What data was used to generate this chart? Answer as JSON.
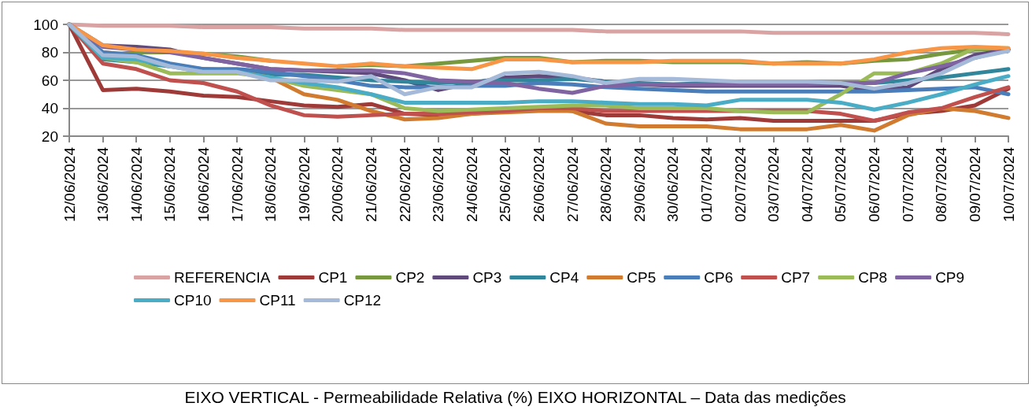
{
  "chart_data": {
    "type": "line",
    "categories": [
      "12/06/2024",
      "13/06/2024",
      "14/06/2024",
      "15/06/2024",
      "16/06/2024",
      "17/06/2024",
      "18/06/2024",
      "19/06/2024",
      "20/06/2024",
      "21/06/2024",
      "22/06/2024",
      "23/06/2024",
      "24/06/2024",
      "25/06/2024",
      "26/06/2024",
      "27/06/2024",
      "28/06/2024",
      "29/06/2024",
      "30/06/2024",
      "01/07/2024",
      "02/07/2024",
      "03/07/2024",
      "04/07/2024",
      "05/07/2024",
      "06/07/2024",
      "07/07/2024",
      "08/07/2024",
      "09/07/2024",
      "10/07/2024"
    ],
    "series": [
      {
        "name": "REFERENCIA",
        "color": "#d9a3a3",
        "values": [
          100,
          99,
          99,
          99,
          98,
          98,
          98,
          97,
          97,
          97,
          96,
          96,
          96,
          96,
          96,
          96,
          95,
          95,
          95,
          95,
          95,
          94,
          94,
          94,
          94,
          94,
          94,
          94,
          93
        ]
      },
      {
        "name": "CP1",
        "color": "#9e3a38",
        "values": [
          100,
          53,
          54,
          52,
          49,
          48,
          45,
          42,
          41,
          43,
          36,
          35,
          36,
          38,
          40,
          38,
          35,
          35,
          33,
          32,
          33,
          31,
          31,
          31,
          31,
          36,
          38,
          42,
          54
        ]
      },
      {
        "name": "CP2",
        "color": "#77983f",
        "values": [
          100,
          78,
          80,
          80,
          79,
          77,
          74,
          null,
          70,
          71,
          70,
          72,
          74,
          76,
          76,
          73,
          74,
          74,
          73,
          73,
          73,
          72,
          73,
          72,
          74,
          75,
          79,
          82,
          82
        ]
      },
      {
        "name": "CP3",
        "color": "#604a7b",
        "values": [
          100,
          85,
          84,
          82,
          76,
          72,
          68,
          67,
          66,
          65,
          60,
          53,
          58,
          62,
          63,
          62,
          59,
          57,
          56,
          56,
          56,
          56,
          56,
          56,
          53,
          55,
          68,
          78,
          82
        ]
      },
      {
        "name": "CP4",
        "color": "#31869b",
        "values": [
          100,
          75,
          73,
          70,
          68,
          67,
          64,
          64,
          62,
          60,
          59,
          58,
          59,
          60,
          60,
          61,
          59,
          58,
          57,
          58,
          58,
          58,
          58,
          58,
          58,
          60,
          62,
          65,
          68
        ]
      },
      {
        "name": "CP5",
        "color": "#d07b2f",
        "values": [
          100,
          80,
          78,
          null,
          68,
          66,
          62,
          50,
          46,
          38,
          32,
          33,
          36,
          37,
          38,
          38,
          29,
          27,
          27,
          27,
          25,
          25,
          25,
          28,
          24,
          35,
          40,
          38,
          33
        ]
      },
      {
        "name": "CP6",
        "color": "#4a7ebb",
        "values": [
          100,
          80,
          78,
          72,
          68,
          68,
          66,
          63,
          60,
          56,
          55,
          55,
          56,
          56,
          58,
          57,
          55,
          54,
          53,
          52,
          52,
          52,
          52,
          52,
          52,
          53,
          54,
          55,
          50
        ]
      },
      {
        "name": "CP7",
        "color": "#c0504d",
        "values": [
          100,
          72,
          68,
          60,
          58,
          52,
          42,
          35,
          34,
          35,
          36,
          36,
          37,
          38,
          40,
          40,
          38,
          38,
          38,
          38,
          38,
          38,
          38,
          36,
          31,
          37,
          40,
          48,
          55
        ]
      },
      {
        "name": "CP8",
        "color": "#9bbb59",
        "values": [
          100,
          76,
          73,
          65,
          65,
          65,
          62,
          56,
          53,
          50,
          40,
          38,
          39,
          40,
          41,
          42,
          42,
          40,
          40,
          40,
          38,
          37,
          37,
          50,
          65,
          65,
          72,
          83,
          83
        ]
      },
      {
        "name": "CP9",
        "color": "#8064a2",
        "values": [
          100,
          84,
          82,
          80,
          76,
          72,
          68,
          67,
          67,
          67,
          65,
          60,
          59,
          58,
          54,
          51,
          56,
          57,
          57,
          57,
          57,
          57,
          57,
          58,
          58,
          65,
          70,
          76,
          82
        ]
      },
      {
        "name": "CP10",
        "color": "#4bacc6",
        "values": [
          100,
          76,
          75,
          70,
          66,
          66,
          62,
          58,
          55,
          50,
          44,
          44,
          44,
          44,
          45,
          45,
          44,
          43,
          43,
          42,
          46,
          46,
          46,
          44,
          39,
          44,
          50,
          57,
          63
        ]
      },
      {
        "name": "CP11",
        "color": "#f79646",
        "values": [
          100,
          85,
          82,
          81,
          79,
          76,
          74,
          72,
          70,
          72,
          70,
          69,
          68,
          75,
          75,
          73,
          73,
          73,
          74,
          74,
          74,
          72,
          72,
          72,
          75,
          80,
          83,
          84,
          83
        ]
      },
      {
        "name": "CP12",
        "color": "#a5b9d8",
        "values": [
          100,
          78,
          77,
          70,
          66,
          66,
          60,
          60,
          59,
          63,
          50,
          55,
          55,
          65,
          66,
          63,
          58,
          61,
          61,
          60,
          59,
          59,
          59,
          58,
          54,
          58,
          65,
          76,
          81
        ]
      }
    ],
    "ylim": [
      20,
      100
    ],
    "yticks": [
      20,
      40,
      60,
      80,
      100
    ],
    "grid": "y",
    "legend": "bottom",
    "marker": "none",
    "line_style": "solid",
    "annotations": [
      "EIXO VERTICAL - Permeabilidade Relativa (%) EIXO HORIZONTAL – Data das medições"
    ]
  }
}
